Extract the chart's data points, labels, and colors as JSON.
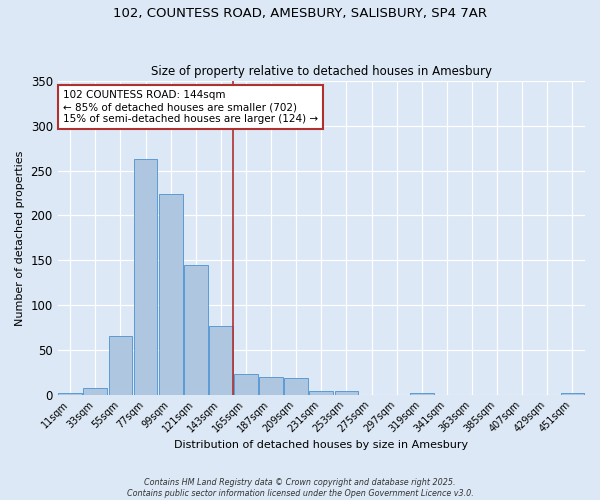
{
  "title_line1": "102, COUNTESS ROAD, AMESBURY, SALISBURY, SP4 7AR",
  "title_line2": "Size of property relative to detached houses in Amesbury",
  "xlabel": "Distribution of detached houses by size in Amesbury",
  "ylabel": "Number of detached properties",
  "bar_labels": [
    "11sqm",
    "33sqm",
    "55sqm",
    "77sqm",
    "99sqm",
    "121sqm",
    "143sqm",
    "165sqm",
    "187sqm",
    "209sqm",
    "231sqm",
    "253sqm",
    "275sqm",
    "297sqm",
    "319sqm",
    "341sqm",
    "363sqm",
    "385sqm",
    "407sqm",
    "429sqm",
    "451sqm"
  ],
  "bar_values": [
    2,
    7,
    65,
    263,
    224,
    145,
    77,
    23,
    20,
    18,
    4,
    4,
    0,
    0,
    2,
    0,
    0,
    0,
    0,
    0,
    2
  ],
  "bar_color": "#aec6df",
  "bar_edgecolor": "#5b9bd5",
  "vline_x": 6.5,
  "vline_color": "#b03030",
  "annotation_text": "102 COUNTESS ROAD: 144sqm\n← 85% of detached houses are smaller (702)\n15% of semi-detached houses are larger (124) →",
  "annotation_box_edgecolor": "#b03030",
  "annotation_box_facecolor": "#ffffff",
  "background_color": "#dce8f5",
  "plot_bg_color": "#dce8f5",
  "ylim": [
    0,
    350
  ],
  "yticks": [
    0,
    50,
    100,
    150,
    200,
    250,
    300,
    350
  ],
  "footer_line1": "Contains HM Land Registry data © Crown copyright and database right 2025.",
  "footer_line2": "Contains public sector information licensed under the Open Government Licence v3.0."
}
